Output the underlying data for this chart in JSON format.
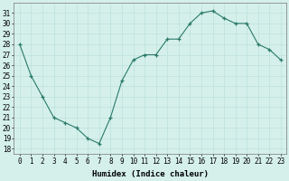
{
  "x": [
    0,
    1,
    2,
    3,
    4,
    5,
    6,
    7,
    8,
    9,
    10,
    11,
    12,
    13,
    14,
    15,
    16,
    17,
    18,
    19,
    20,
    21,
    22,
    23
  ],
  "y": [
    28,
    25,
    23,
    21,
    20.5,
    20,
    19,
    18.5,
    21,
    24.5,
    26.5,
    27,
    27,
    28.5,
    28.5,
    30,
    31,
    31.2,
    30.5,
    30,
    30,
    28,
    27.5,
    26.5
  ],
  "line_color": "#2a7a6a",
  "marker": "+",
  "marker_color": "#2a7a6a",
  "bg_color": "#d5f0eb",
  "grid_color": "#b8ddd6",
  "xlabel": "Humidex (Indice chaleur)",
  "xlim": [
    -0.5,
    23.5
  ],
  "ylim": [
    17.5,
    32
  ],
  "yticks": [
    18,
    19,
    20,
    21,
    22,
    23,
    24,
    25,
    26,
    27,
    28,
    29,
    30,
    31
  ],
  "xticks": [
    0,
    1,
    2,
    3,
    4,
    5,
    6,
    7,
    8,
    9,
    10,
    11,
    12,
    13,
    14,
    15,
    16,
    17,
    18,
    19,
    20,
    21,
    22,
    23
  ],
  "tick_fontsize": 5.5,
  "label_fontsize": 6.5
}
